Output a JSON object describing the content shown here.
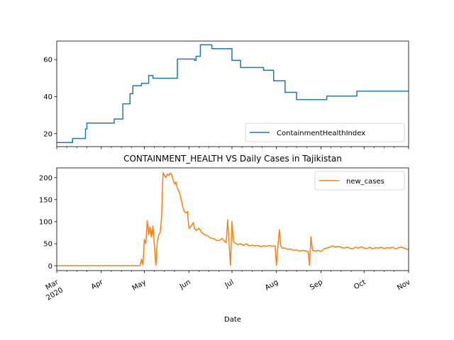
{
  "chart_data": [
    {
      "type": "line",
      "title": "",
      "xlabel": "",
      "ylabel": "",
      "ylim": [
        13,
        70
      ],
      "yticks": [
        20,
        40,
        60
      ],
      "xlim": [
        "2020-03-01",
        "2020-11-01"
      ],
      "x_tick_labels_visible": false,
      "legend": {
        "position": "lower-right"
      },
      "series": [
        {
          "name": "ContainmentHealthIndex",
          "color": "#1f77b4",
          "step": true,
          "points": [
            [
              "2020-03-01",
              15.2
            ],
            [
              "2020-03-12",
              17.4
            ],
            [
              "2020-03-21",
              22.5
            ],
            [
              "2020-03-22",
              25.7
            ],
            [
              "2020-04-10",
              27.9
            ],
            [
              "2020-04-16",
              36.1
            ],
            [
              "2020-04-21",
              41.6
            ],
            [
              "2020-04-23",
              45.9
            ],
            [
              "2020-04-29",
              47.2
            ],
            [
              "2020-05-04",
              51.4
            ],
            [
              "2020-05-07",
              49.9
            ],
            [
              "2020-05-24",
              60.3
            ],
            [
              "2020-06-05",
              59.6
            ],
            [
              "2020-06-06",
              61.8
            ],
            [
              "2020-06-09",
              68.0
            ],
            [
              "2020-06-17",
              65.9
            ],
            [
              "2020-07-01",
              59.6
            ],
            [
              "2020-07-07",
              55.7
            ],
            [
              "2020-07-23",
              54.2
            ],
            [
              "2020-07-30",
              48.6
            ],
            [
              "2020-08-07",
              42.3
            ],
            [
              "2020-08-15",
              38.4
            ],
            [
              "2020-09-05",
              40.3
            ],
            [
              "2020-09-26",
              43.0
            ],
            [
              "2020-11-01",
              43.0
            ]
          ]
        }
      ]
    },
    {
      "type": "line",
      "title": "CONTAINMENT_HEALTH VS Daily Cases in Tajikistan",
      "xlabel": "Date",
      "ylabel": "",
      "ylim": [
        -11,
        222
      ],
      "yticks": [
        0,
        50,
        100,
        150,
        200
      ],
      "xlim": [
        "2020-03-01",
        "2020-11-01"
      ],
      "x_tick_labels": [
        {
          "date": "2020-03-01",
          "label": "Mar",
          "sublabel": "2020"
        },
        {
          "date": "2020-04-01",
          "label": "Apr"
        },
        {
          "date": "2020-05-01",
          "label": "May"
        },
        {
          "date": "2020-06-01",
          "label": "Jun"
        },
        {
          "date": "2020-07-01",
          "label": "Jul"
        },
        {
          "date": "2020-08-01",
          "label": "Aug"
        },
        {
          "date": "2020-09-01",
          "label": "Sep"
        },
        {
          "date": "2020-10-01",
          "label": "Oct"
        },
        {
          "date": "2020-11-01",
          "label": "Nov"
        }
      ],
      "legend": {
        "position": "upper-right"
      },
      "series": [
        {
          "name": "new_cases",
          "color": "#ff7f0e",
          "points": [
            [
              "2020-03-01",
              0
            ],
            [
              "2020-04-28",
              0
            ],
            [
              "2020-04-29",
              15
            ],
            [
              "2020-04-30",
              2
            ],
            [
              "2020-05-01",
              60
            ],
            [
              "2020-05-02",
              50
            ],
            [
              "2020-05-03",
              102
            ],
            [
              "2020-05-04",
              70
            ],
            [
              "2020-05-05",
              88
            ],
            [
              "2020-05-06",
              65
            ],
            [
              "2020-05-07",
              90
            ],
            [
              "2020-05-08",
              45
            ],
            [
              "2020-05-09",
              1
            ],
            [
              "2020-05-10",
              55
            ],
            [
              "2020-05-11",
              70
            ],
            [
              "2020-05-12",
              75
            ],
            [
              "2020-05-13",
              110
            ],
            [
              "2020-05-14",
              211
            ],
            [
              "2020-05-15",
              205
            ],
            [
              "2020-05-16",
              200
            ],
            [
              "2020-05-17",
              208
            ],
            [
              "2020-05-18",
              205
            ],
            [
              "2020-05-19",
              210
            ],
            [
              "2020-05-20",
              207
            ],
            [
              "2020-05-21",
              195
            ],
            [
              "2020-05-22",
              185
            ],
            [
              "2020-05-23",
              190
            ],
            [
              "2020-05-24",
              175
            ],
            [
              "2020-05-25",
              170
            ],
            [
              "2020-05-26",
              160
            ],
            [
              "2020-05-27",
              145
            ],
            [
              "2020-05-28",
              130
            ],
            [
              "2020-05-29",
              122
            ],
            [
              "2020-05-30",
              120
            ],
            [
              "2020-05-31",
              123
            ],
            [
              "2020-06-01",
              85
            ],
            [
              "2020-06-02",
              88
            ],
            [
              "2020-06-03",
              92
            ],
            [
              "2020-06-04",
              98
            ],
            [
              "2020-06-05",
              84
            ],
            [
              "2020-06-06",
              80
            ],
            [
              "2020-06-08",
              85
            ],
            [
              "2020-06-10",
              75
            ],
            [
              "2020-06-12",
              70
            ],
            [
              "2020-06-14",
              68
            ],
            [
              "2020-06-16",
              63
            ],
            [
              "2020-06-18",
              62
            ],
            [
              "2020-06-20",
              58
            ],
            [
              "2020-06-22",
              57
            ],
            [
              "2020-06-24",
              62
            ],
            [
              "2020-06-26",
              55
            ],
            [
              "2020-06-27",
              52
            ],
            [
              "2020-06-28",
              104
            ],
            [
              "2020-06-29",
              50
            ],
            [
              "2020-06-30",
              1
            ],
            [
              "2020-07-01",
              100
            ],
            [
              "2020-07-02",
              55
            ],
            [
              "2020-07-03",
              52
            ],
            [
              "2020-07-05",
              48
            ],
            [
              "2020-07-07",
              50
            ],
            [
              "2020-07-09",
              46
            ],
            [
              "2020-07-11",
              50
            ],
            [
              "2020-07-13",
              45
            ],
            [
              "2020-07-15",
              47
            ],
            [
              "2020-07-17",
              45
            ],
            [
              "2020-07-19",
              46
            ],
            [
              "2020-07-21",
              43
            ],
            [
              "2020-07-23",
              45
            ],
            [
              "2020-07-25",
              44
            ],
            [
              "2020-07-27",
              46
            ],
            [
              "2020-07-29",
              44
            ],
            [
              "2020-07-31",
              45
            ],
            [
              "2020-08-01",
              1
            ],
            [
              "2020-08-02",
              44
            ],
            [
              "2020-08-03",
              82
            ],
            [
              "2020-08-04",
              45
            ],
            [
              "2020-08-05",
              40
            ],
            [
              "2020-08-07",
              40
            ],
            [
              "2020-08-09",
              37
            ],
            [
              "2020-08-11",
              38
            ],
            [
              "2020-08-13",
              35
            ],
            [
              "2020-08-15",
              36
            ],
            [
              "2020-08-17",
              33
            ],
            [
              "2020-08-19",
              35
            ],
            [
              "2020-08-21",
              34
            ],
            [
              "2020-08-23",
              32
            ],
            [
              "2020-08-24",
              1
            ],
            [
              "2020-08-25",
              66
            ],
            [
              "2020-08-26",
              35
            ],
            [
              "2020-08-28",
              33
            ],
            [
              "2020-08-30",
              35
            ],
            [
              "2020-09-01",
              32
            ],
            [
              "2020-09-03",
              38
            ],
            [
              "2020-09-05",
              40
            ],
            [
              "2020-09-07",
              42
            ],
            [
              "2020-09-09",
              45
            ],
            [
              "2020-09-11",
              42
            ],
            [
              "2020-09-13",
              44
            ],
            [
              "2020-09-15",
              42
            ],
            [
              "2020-09-17",
              40
            ],
            [
              "2020-09-19",
              42
            ],
            [
              "2020-09-21",
              40
            ],
            [
              "2020-09-23",
              38
            ],
            [
              "2020-09-25",
              42
            ],
            [
              "2020-09-27",
              40
            ],
            [
              "2020-09-29",
              43
            ],
            [
              "2020-10-01",
              40
            ],
            [
              "2020-10-03",
              39
            ],
            [
              "2020-10-05",
              42
            ],
            [
              "2020-10-07",
              38
            ],
            [
              "2020-10-09",
              41
            ],
            [
              "2020-10-11",
              40
            ],
            [
              "2020-10-13",
              42
            ],
            [
              "2020-10-15",
              39
            ],
            [
              "2020-10-17",
              41
            ],
            [
              "2020-10-19",
              40
            ],
            [
              "2020-10-21",
              42
            ],
            [
              "2020-10-23",
              38
            ],
            [
              "2020-10-25",
              41
            ],
            [
              "2020-10-27",
              42
            ],
            [
              "2020-10-29",
              40
            ],
            [
              "2020-10-31",
              37
            ],
            [
              "2020-11-01",
              38
            ]
          ]
        }
      ]
    }
  ]
}
